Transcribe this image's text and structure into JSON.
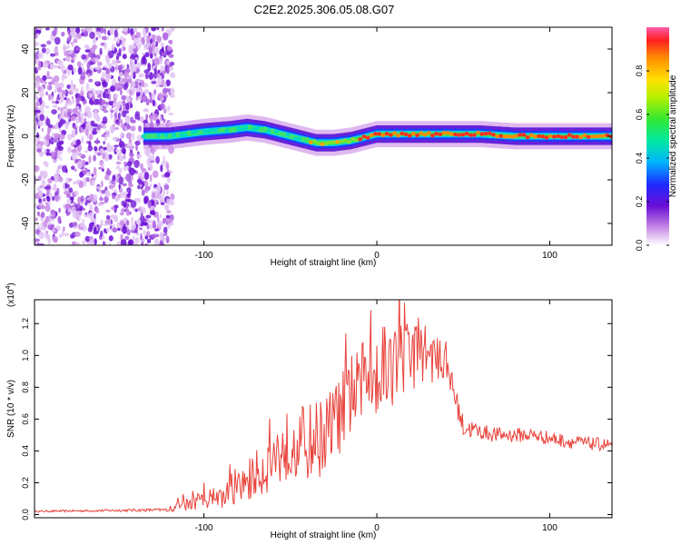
{
  "title": "C2E2.2025.306.05.08.G07",
  "chart_data": [
    {
      "type": "heatmap",
      "xlabel": "Height of straight line (km)",
      "ylabel": "Frequency (Hz)",
      "xlim": [
        -198,
        136
      ],
      "ylim": [
        -50,
        50
      ],
      "xticks": [
        -100,
        0,
        100
      ],
      "yticks": [
        -40,
        -20,
        0,
        20,
        40
      ],
      "ridge": {
        "x": [
          -135,
          -120,
          -100,
          -85,
          -75,
          -65,
          -55,
          -45,
          -35,
          -25,
          -15,
          -5,
          0,
          10,
          20,
          40,
          60,
          80,
          100,
          120,
          136
        ],
        "freq": [
          0,
          0,
          2,
          3,
          4,
          3,
          1,
          -1,
          -3,
          -3,
          -2,
          0,
          1,
          1,
          1,
          1,
          1,
          0,
          0,
          0,
          0
        ]
      },
      "colorbar": {
        "label": "Normalized spectral amplitude",
        "range": [
          0,
          1
        ],
        "ticks": [
          0.0,
          0.2,
          0.4,
          0.6,
          0.8
        ]
      }
    },
    {
      "type": "line",
      "xlabel": "Height of straight line (km)",
      "ylabel": "SNR (10 * v/v)",
      "multiplier": "(x10",
      "multiplier_exp": "4",
      "multiplier_close": ")",
      "xlim": [
        -198,
        136
      ],
      "ylim": [
        -0.02,
        1.35
      ],
      "xticks": [
        -100,
        0,
        100
      ],
      "yticks": [
        0.0,
        0.2,
        0.4,
        0.6,
        0.8,
        1.0,
        1.2
      ],
      "color": "#e8423a",
      "envelope": {
        "x": [
          -198,
          -120,
          -110,
          -100,
          -90,
          -80,
          -70,
          -60,
          -50,
          -40,
          -30,
          -20,
          -10,
          0,
          10,
          20,
          25,
          30,
          40,
          45,
          50,
          60,
          70,
          80,
          90,
          100,
          110,
          120,
          130,
          136
        ],
        "y": [
          0.02,
          0.03,
          0.06,
          0.1,
          0.1,
          0.16,
          0.25,
          0.35,
          0.45,
          0.45,
          0.5,
          0.65,
          0.8,
          0.9,
          0.95,
          1.0,
          1.05,
          1.0,
          0.95,
          0.75,
          0.55,
          0.52,
          0.5,
          0.5,
          0.5,
          0.48,
          0.46,
          0.45,
          0.44,
          0.44
        ]
      },
      "noise": {
        "x": [
          -198,
          -120,
          -110,
          -90,
          -70,
          -60,
          -40,
          -20,
          0,
          20,
          30,
          40,
          45,
          60,
          136
        ],
        "amp": [
          0.005,
          0.01,
          0.05,
          0.07,
          0.15,
          0.2,
          0.25,
          0.25,
          0.28,
          0.25,
          0.18,
          0.1,
          0.08,
          0.05,
          0.04
        ]
      }
    }
  ]
}
